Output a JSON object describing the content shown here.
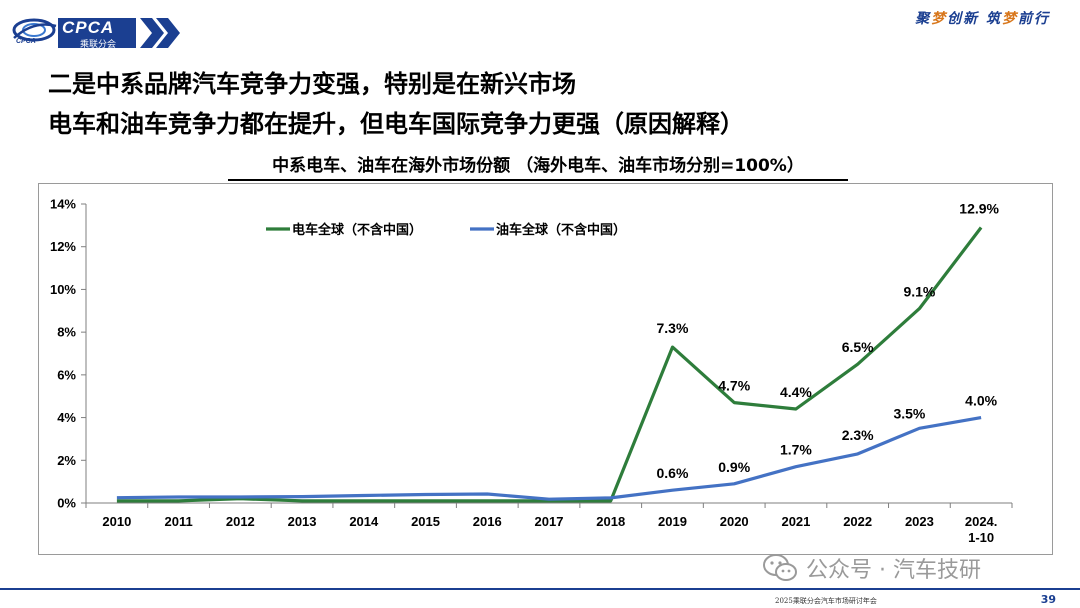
{
  "header": {
    "logo_text": "CPCA",
    "logo_subtext": "乘联分会",
    "logo_emblem_text": "CPCA",
    "slogan_part1": "聚",
    "slogan_accent1": "梦",
    "slogan_part2": "创新 筑",
    "slogan_accent2": "梦",
    "slogan_part3": "前行"
  },
  "title_line1": "二是中系品牌汽车竞争力变强，特别是在新兴市场",
  "title_line2": "电车和油车竞争力都在提升，但电车国际竞争力更强（原因解释）",
  "chart_data": {
    "type": "line",
    "title": "中系电车、油车在海外市场份额 （海外电车、油车市场分别=100%）",
    "categories": [
      "2010",
      "2011",
      "2012",
      "2013",
      "2014",
      "2015",
      "2016",
      "2017",
      "2018",
      "2019",
      "2020",
      "2021",
      "2022",
      "2023",
      "2024.\n1-10"
    ],
    "y_unit": "%",
    "ylim": [
      0,
      14
    ],
    "yticks": [
      0,
      2,
      4,
      6,
      8,
      10,
      12,
      14
    ],
    "ytick_labels": [
      "0%",
      "2%",
      "4%",
      "6%",
      "8%",
      "10%",
      "12%",
      "14%"
    ],
    "grid": false,
    "legend_position": "top-left",
    "series": [
      {
        "name": "电车全球（不含中国）",
        "color": "#2e7d3b",
        "values": [
          0.1,
          0.1,
          0.2,
          0.1,
          0.1,
          0.1,
          0.1,
          0.1,
          0.1,
          7.3,
          4.7,
          4.4,
          6.5,
          9.1,
          12.9
        ],
        "labels": [
          null,
          null,
          null,
          null,
          null,
          null,
          null,
          null,
          null,
          "7.3%",
          "4.7%",
          "4.4%",
          "6.5%",
          "9.1%",
          "12.9%"
        ]
      },
      {
        "name": "油车全球（不含中国）",
        "color": "#4472c4",
        "values": [
          0.25,
          0.28,
          0.28,
          0.3,
          0.35,
          0.4,
          0.42,
          0.18,
          0.24,
          0.6,
          0.9,
          1.7,
          2.3,
          3.5,
          4.0
        ],
        "labels": [
          null,
          null,
          null,
          null,
          null,
          null,
          null,
          null,
          null,
          "0.6%",
          "0.9%",
          "1.7%",
          "2.3%",
          "3.5%",
          "4.0%"
        ]
      }
    ]
  },
  "watermark": "公众号 · 汽车技研",
  "footer_note": "2025乘联分会汽车市场研讨年会",
  "page_number": "39"
}
